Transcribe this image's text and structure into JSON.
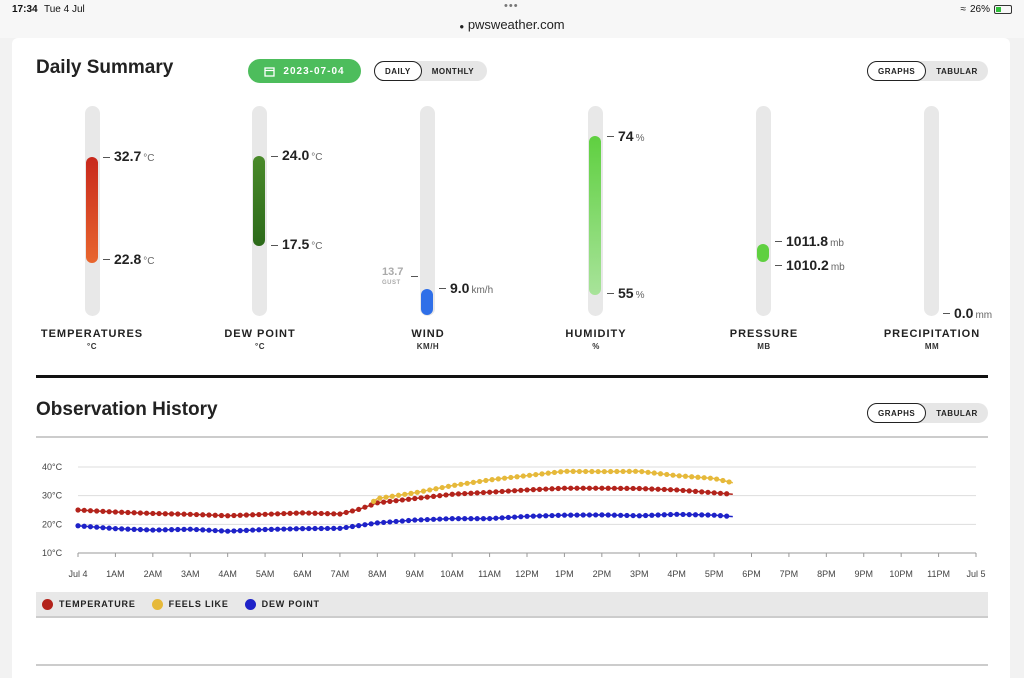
{
  "status": {
    "time": "17:34",
    "date": "Tue 4 Jul",
    "url": "pwsweather.com",
    "battery": "26%"
  },
  "summary": {
    "title": "Daily Summary",
    "date": "2023-07-04",
    "period": {
      "daily": "DAILY",
      "monthly": "MONTHLY"
    },
    "view": {
      "graphs": "GRAPHS",
      "tabular": "TABULAR"
    }
  },
  "gauges": {
    "temperature": {
      "label": "TEMPERATURES",
      "unit_label": "°C",
      "high": "32.7",
      "low": "22.8",
      "unit": "°C",
      "color_top": "#c8281c",
      "color_bottom": "#e8662e"
    },
    "dewpoint": {
      "label": "DEW POINT",
      "unit_label": "°C",
      "high": "24.0",
      "low": "17.5",
      "unit": "°C",
      "color_top": "#4a8a2a",
      "color_bottom": "#2c6a1a"
    },
    "wind": {
      "label": "WIND",
      "unit_label": "KM/H",
      "speed": "9.0",
      "gust": "13.7",
      "gust_label": "GUST",
      "unit": "km/h",
      "color": "#2f6fe8"
    },
    "humidity": {
      "label": "HUMIDITY",
      "unit_label": "%",
      "high": "74",
      "low": "55",
      "unit": "%",
      "color": "#5fd040"
    },
    "pressure": {
      "label": "PRESSURE",
      "unit_label": "MB",
      "high": "1011.8",
      "low": "1010.2",
      "unit": "mb",
      "color": "#5fd040"
    },
    "precipitation": {
      "label": "PRECIPITATION",
      "unit_label": "MM",
      "value": "0.0",
      "unit": "mm"
    }
  },
  "history": {
    "title": "Observation History",
    "view": {
      "graphs": "GRAPHS",
      "tabular": "TABULAR"
    },
    "legend": [
      {
        "label": "TEMPERATURE",
        "color": "#b3231b"
      },
      {
        "label": "FEELS LIKE",
        "color": "#e6b93a"
      },
      {
        "label": "DEW POINT",
        "color": "#1e22c8"
      }
    ]
  },
  "chart_data": {
    "type": "line",
    "y_ticks": [
      "40°C",
      "30°C",
      "20°C",
      "10°C"
    ],
    "ylim": [
      10,
      40
    ],
    "x_ticks": [
      "Jul 4",
      "1AM",
      "2AM",
      "3AM",
      "4AM",
      "5AM",
      "6AM",
      "7AM",
      "8AM",
      "9AM",
      "10AM",
      "11AM",
      "12PM",
      "1PM",
      "2PM",
      "3PM",
      "4PM",
      "5PM",
      "6PM",
      "7PM",
      "8PM",
      "9PM",
      "10PM",
      "11PM",
      "Jul 5"
    ],
    "x_unit": "hour",
    "series": [
      {
        "name": "TEMPERATURE",
        "color": "#b3231b",
        "x": [
          0,
          1,
          2,
          3,
          4,
          5,
          6,
          7,
          7.5,
          8,
          9,
          10,
          11,
          12,
          13,
          14,
          15,
          16,
          17,
          17.5
        ],
        "values": [
          25,
          24.3,
          23.8,
          23.5,
          23,
          23.5,
          24,
          23.6,
          25.2,
          27.5,
          29,
          30.5,
          31.2,
          32,
          32.6,
          32.6,
          32.5,
          32,
          31,
          30.5
        ]
      },
      {
        "name": "FEELS LIKE",
        "color": "#e6b93a",
        "x": [
          7.9,
          8,
          9,
          10,
          11,
          12,
          13,
          14,
          15,
          16,
          17,
          17.5
        ],
        "values": [
          28,
          29,
          31,
          33.5,
          35.5,
          37,
          38.5,
          38.4,
          38.5,
          37,
          36,
          34.5
        ]
      },
      {
        "name": "DEW POINT",
        "color": "#1e22c8",
        "x": [
          0,
          1,
          2,
          3,
          4,
          5,
          6,
          7,
          8,
          9,
          10,
          11,
          12,
          13,
          14,
          15,
          16,
          17,
          17.5
        ],
        "values": [
          19.5,
          18.5,
          18,
          18.3,
          17.6,
          18.2,
          18.5,
          18.6,
          20.5,
          21.5,
          22,
          22,
          22.8,
          23.2,
          23.3,
          23,
          23.5,
          23.2,
          22.7
        ]
      }
    ]
  }
}
